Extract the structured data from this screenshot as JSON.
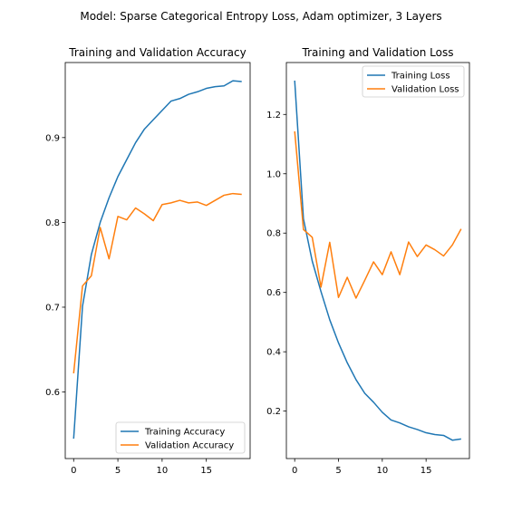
{
  "figure_title": "Model: Sparse Categorical Entropy Loss, Adam optimizer, 3 Layers",
  "colors": {
    "training": "#1f77b4",
    "validation": "#ff7f0e"
  },
  "chart_data": [
    {
      "type": "line",
      "title": "Training and Validation Accuracy",
      "xlabel": "",
      "ylabel": "",
      "xlim": [
        -0.95,
        19.95
      ],
      "ylim": [
        0.5215,
        0.9885
      ],
      "x_ticks": [
        0,
        5,
        10,
        15
      ],
      "y_ticks": [
        0.6,
        0.7,
        0.8,
        0.9
      ],
      "grid": false,
      "legend_position": "lower-right",
      "x": [
        0,
        1,
        2,
        3,
        4,
        5,
        6,
        7,
        8,
        9,
        10,
        11,
        12,
        13,
        14,
        15,
        16,
        17,
        18,
        19
      ],
      "series": [
        {
          "name": "Training Accuracy",
          "color": "#1f77b4",
          "values": [
            0.545,
            0.701,
            0.762,
            0.8,
            0.829,
            0.854,
            0.874,
            0.894,
            0.91,
            0.921,
            0.932,
            0.943,
            0.946,
            0.951,
            0.954,
            0.958,
            0.96,
            0.961,
            0.967,
            0.966
          ]
        },
        {
          "name": "Validation Accuracy",
          "color": "#ff7f0e",
          "values": [
            0.622,
            0.725,
            0.737,
            0.794,
            0.757,
            0.807,
            0.803,
            0.817,
            0.81,
            0.802,
            0.821,
            0.823,
            0.826,
            0.823,
            0.824,
            0.82,
            0.826,
            0.832,
            0.834,
            0.833
          ]
        }
      ]
    },
    {
      "type": "line",
      "title": "Training and Validation Loss",
      "xlabel": "",
      "ylabel": "",
      "xlim": [
        -0.95,
        19.95
      ],
      "ylim": [
        0.04,
        1.375
      ],
      "x_ticks": [
        0,
        5,
        10,
        15
      ],
      "y_ticks": [
        0.2,
        0.4,
        0.6,
        0.8,
        1.0,
        1.2
      ],
      "grid": false,
      "legend_position": "upper-right",
      "x": [
        0,
        1,
        2,
        3,
        4,
        5,
        6,
        7,
        8,
        9,
        10,
        11,
        12,
        13,
        14,
        15,
        16,
        17,
        18,
        19
      ],
      "series": [
        {
          "name": "Training Loss",
          "color": "#1f77b4",
          "values": [
            1.314,
            0.848,
            0.706,
            0.603,
            0.508,
            0.43,
            0.363,
            0.306,
            0.26,
            0.23,
            0.196,
            0.17,
            0.16,
            0.147,
            0.138,
            0.127,
            0.121,
            0.118,
            0.102,
            0.106
          ]
        },
        {
          "name": "Validation Loss",
          "color": "#ff7f0e",
          "values": [
            1.143,
            0.812,
            0.786,
            0.618,
            0.769,
            0.583,
            0.651,
            0.581,
            0.641,
            0.703,
            0.66,
            0.737,
            0.66,
            0.77,
            0.721,
            0.76,
            0.744,
            0.723,
            0.76,
            0.814
          ]
        }
      ]
    }
  ]
}
